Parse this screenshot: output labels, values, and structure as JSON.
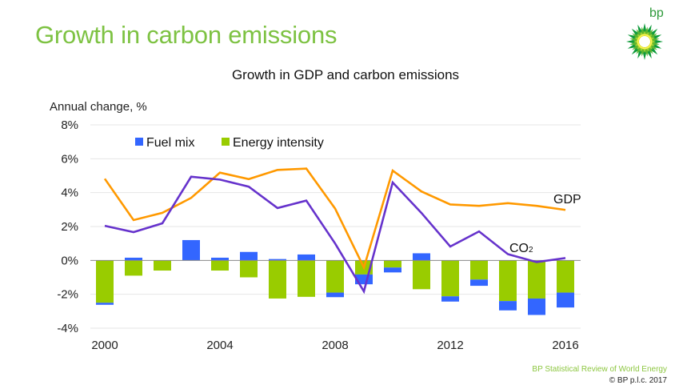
{
  "slide": {
    "title": "Growth in carbon emissions",
    "logo_text": "bp",
    "footer_source": "BP Statistical Review of World Energy",
    "footer_copyright": "© BP p.l.c. 2017"
  },
  "colors": {
    "title_green": "#7dc242",
    "fuel_mix": "#3366ff",
    "energy_intensity": "#99cc00",
    "gdp": "#ff9900",
    "co2": "#6633cc",
    "gridline": "#e6e6e6",
    "zero_line": "#888888"
  },
  "chart_data": {
    "type": "bar",
    "title": "Growth in GDP and carbon emissions",
    "ylabel": "Annual change, %",
    "xlabel": "",
    "ylim": [
      -4,
      8
    ],
    "y_ticks": [
      8,
      6,
      4,
      2,
      0,
      -2,
      -4
    ],
    "y_tick_labels": [
      "8%",
      "6%",
      "4%",
      "2%",
      "0%",
      "-2%",
      "-4%"
    ],
    "grid": true,
    "legend_position": "top-left",
    "legend": [
      "Fuel mix",
      "Energy intensity"
    ],
    "categories": [
      2000,
      2001,
      2002,
      2003,
      2004,
      2005,
      2006,
      2007,
      2008,
      2009,
      2010,
      2011,
      2012,
      2013,
      2014,
      2015,
      2016
    ],
    "x_tick_labels": [
      "2000",
      "2004",
      "2008",
      "2012",
      "2016"
    ],
    "x_tick_years": [
      2000,
      2004,
      2008,
      2012,
      2016
    ],
    "series": [
      {
        "name": "Energy intensity",
        "kind": "stacked-bar",
        "values": [
          -2.5,
          -0.9,
          -0.6,
          0.0,
          -0.6,
          -1.0,
          -2.25,
          -2.15,
          -1.9,
          -0.83,
          -0.42,
          -1.7,
          -2.12,
          -1.13,
          -2.4,
          -2.25,
          -1.9
        ]
      },
      {
        "name": "Fuel mix",
        "kind": "stacked-bar",
        "values": [
          -0.12,
          0.16,
          0.0,
          1.2,
          0.16,
          0.5,
          0.08,
          0.35,
          -0.27,
          -0.58,
          -0.29,
          0.42,
          -0.31,
          -0.37,
          -0.55,
          -0.97,
          -0.88
        ]
      },
      {
        "name": "GDP",
        "kind": "line",
        "label": "GDP",
        "values": [
          4.82,
          2.38,
          2.81,
          3.69,
          5.18,
          4.8,
          5.34,
          5.42,
          3.06,
          -0.42,
          5.3,
          4.07,
          3.3,
          3.22,
          3.38,
          3.22,
          2.98
        ]
      },
      {
        "name": "CO2",
        "kind": "line",
        "label": "CO",
        "label_subscript": "2",
        "values": [
          2.04,
          1.67,
          2.19,
          4.94,
          4.77,
          4.35,
          3.09,
          3.53,
          1.0,
          -1.83,
          4.6,
          2.8,
          0.82,
          1.71,
          0.37,
          -0.1,
          0.14
        ]
      }
    ]
  }
}
